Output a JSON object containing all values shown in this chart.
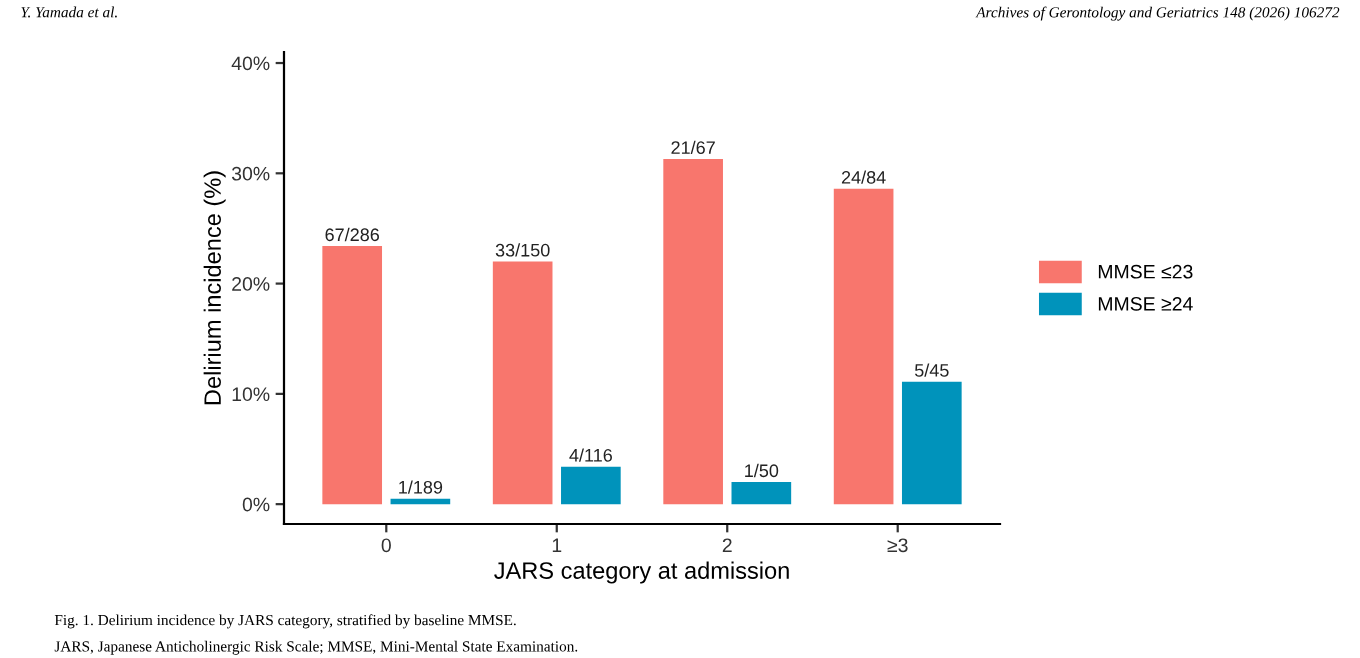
{
  "chart_data": {
    "type": "bar",
    "categories": [
      "0",
      "1",
      "2",
      "≥3"
    ],
    "series": [
      {
        "name": "MMSE ≤23",
        "color": "#f8766d",
        "values": [
          23.4,
          22.0,
          31.3,
          28.6
        ],
        "value_labels": [
          "67/286",
          "33/150",
          "21/67",
          "24/84"
        ]
      },
      {
        "name": "MMSE ≥24",
        "color": "#0093bb",
        "values": [
          0.5,
          3.4,
          2.0,
          11.1
        ],
        "value_labels": [
          "1/189",
          "4/116",
          "1/50",
          "5/45"
        ]
      }
    ],
    "xlabel": "JARS category at admission",
    "ylabel": "Delirium incidence (%)",
    "ylim": [
      -1.8,
      41
    ],
    "yticks": [
      {
        "value": 0,
        "label": "0%"
      },
      {
        "value": 10,
        "label": "10%"
      },
      {
        "value": 20,
        "label": "20%"
      },
      {
        "value": 30,
        "label": "30%"
      },
      {
        "value": 40,
        "label": "40%"
      }
    ],
    "grid": false,
    "legend": "right",
    "annotations": [
      "Y. Yamada et al.",
      "Archives of Gerontology and Geriatrics 148 (2026) 106272",
      "Fig. 1. Delirium incidence by JARS category, stratified by baseline MMSE.",
      "JARS, Japanese Anticholinergic Risk Scale; MMSE, Mini-Mental State Examination."
    ]
  }
}
